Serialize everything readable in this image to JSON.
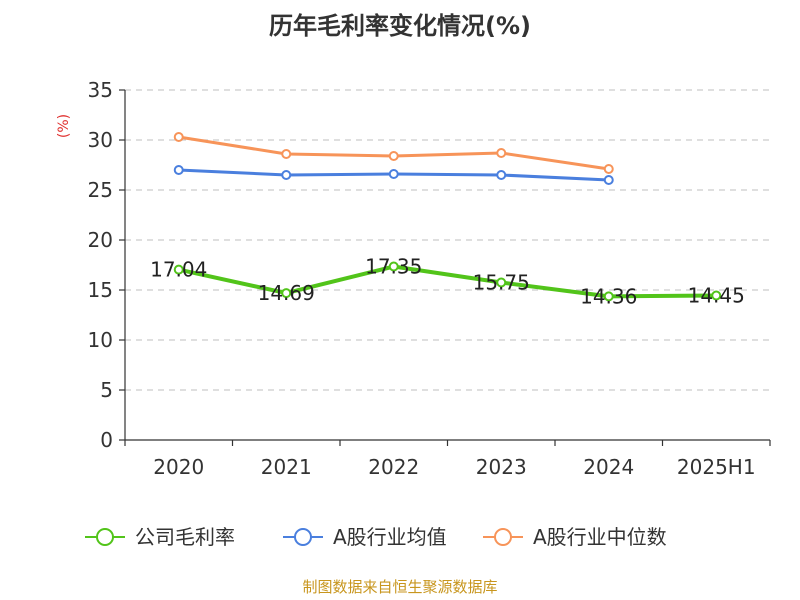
{
  "chart_data": {
    "type": "line",
    "title": "历年毛利率变化情况(%)",
    "ylabel": "(%)",
    "ylim": [
      0,
      35
    ],
    "yticks": [
      0,
      5,
      10,
      15,
      20,
      25,
      30,
      35
    ],
    "grid": true,
    "legend_position": "bottom",
    "categories": [
      "2020",
      "2021",
      "2022",
      "2023",
      "2024",
      "2025H1"
    ],
    "series": [
      {
        "name": "公司毛利率",
        "color": "#52c41a",
        "values": [
          17.04,
          14.69,
          17.35,
          15.75,
          14.36,
          14.45
        ],
        "labels": [
          "17.04",
          "14.69",
          "17.35",
          "15.75",
          "14.36",
          "14.45"
        ],
        "line_width": 4
      },
      {
        "name": "A股行业均值",
        "color": "#4a7fde",
        "values": [
          27.0,
          26.5,
          26.6,
          26.5,
          26.0,
          null
        ],
        "line_width": 3
      },
      {
        "name": "A股行业中位数",
        "color": "#f79459",
        "values": [
          30.3,
          28.6,
          28.4,
          28.7,
          27.1,
          null
        ],
        "line_width": 3
      }
    ]
  },
  "source": "制图数据来自恒生聚源数据库"
}
